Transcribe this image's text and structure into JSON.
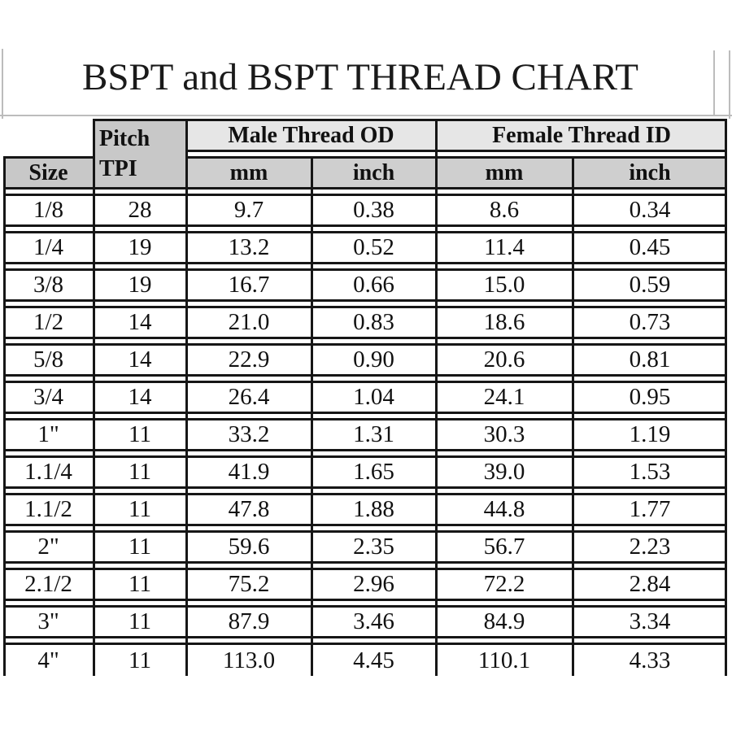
{
  "title": "BSPT and BSPT THREAD CHART",
  "chart_data": {
    "type": "table",
    "title": "BSPT and BSPT THREAD CHART",
    "header": {
      "size": "Size",
      "pitch_line1": "Pitch",
      "pitch_line2": "TPI",
      "male_group": "Male Thread OD",
      "female_group": "Female Thread ID",
      "units": [
        "mm",
        "inch",
        "mm",
        "inch"
      ]
    },
    "columns": [
      "Size",
      "Pitch TPI",
      "Male Thread OD mm",
      "Male Thread OD inch",
      "Female Thread ID mm",
      "Female Thread ID inch"
    ],
    "rows": [
      [
        "1/8",
        "28",
        "9.7",
        "0.38",
        "8.6",
        "0.34"
      ],
      [
        "1/4",
        "19",
        "13.2",
        "0.52",
        "11.4",
        "0.45"
      ],
      [
        "3/8",
        "19",
        "16.7",
        "0.66",
        "15.0",
        "0.59"
      ],
      [
        "1/2",
        "14",
        "21.0",
        "0.83",
        "18.6",
        "0.73"
      ],
      [
        "5/8",
        "14",
        "22.9",
        "0.90",
        "20.6",
        "0.81"
      ],
      [
        "3/4",
        "14",
        "26.4",
        "1.04",
        "24.1",
        "0.95"
      ],
      [
        "1\"",
        "11",
        "33.2",
        "1.31",
        "30.3",
        "1.19"
      ],
      [
        "1.1/4",
        "11",
        "41.9",
        "1.65",
        "39.0",
        "1.53"
      ],
      [
        "1.1/2",
        "11",
        "47.8",
        "1.88",
        "44.8",
        "1.77"
      ],
      [
        "2\"",
        "11",
        "59.6",
        "2.35",
        "56.7",
        "2.23"
      ],
      [
        "2.1/2",
        "11",
        "75.2",
        "2.96",
        "72.2",
        "2.84"
      ],
      [
        "3\"",
        "11",
        "87.9",
        "3.46",
        "84.9",
        "3.34"
      ],
      [
        "4\"",
        "11",
        "113.0",
        "4.45",
        "110.1",
        "4.33"
      ]
    ]
  },
  "colors": {
    "border": "#161616",
    "header_dark": "#c8c8c8",
    "unit_gray": "#cfcfcf",
    "group_light": "#e6e6e6",
    "gridline": "#bcbcbc"
  }
}
